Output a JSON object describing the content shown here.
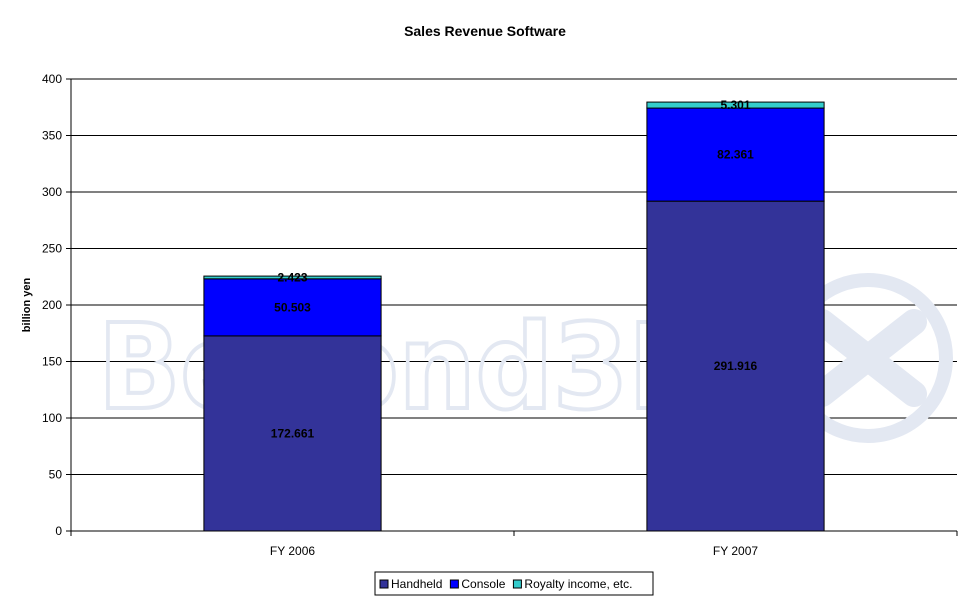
{
  "chart_data": {
    "type": "bar",
    "stacked": true,
    "title": "Sales Revenue Software",
    "ylabel": "billion yen",
    "xlabel": "",
    "categories": [
      "FY 2006",
      "FY 2007"
    ],
    "ylim": [
      0,
      400
    ],
    "yticks": [
      0,
      50,
      100,
      150,
      200,
      250,
      300,
      350,
      400
    ],
    "grid": true,
    "legend_position": "bottom",
    "series": [
      {
        "name": "Handheld",
        "values": [
          172.661,
          291.916
        ],
        "labels": [
          "172.661",
          "291.916"
        ],
        "color": "#333399"
      },
      {
        "name": "Console",
        "values": [
          50.503,
          82.361
        ],
        "labels": [
          "50.503",
          "82.361"
        ],
        "color": "#0000ff"
      },
      {
        "name": "Royalty income, etc.",
        "values": [
          2.423,
          5.301
        ],
        "labels": [
          "2.423",
          "5.301"
        ],
        "color": "#33cccc"
      }
    ]
  },
  "watermark": {
    "text": "Beyond3D",
    "logo_icon": "beyond3d-logo-icon",
    "color": "#e3e8f2"
  }
}
